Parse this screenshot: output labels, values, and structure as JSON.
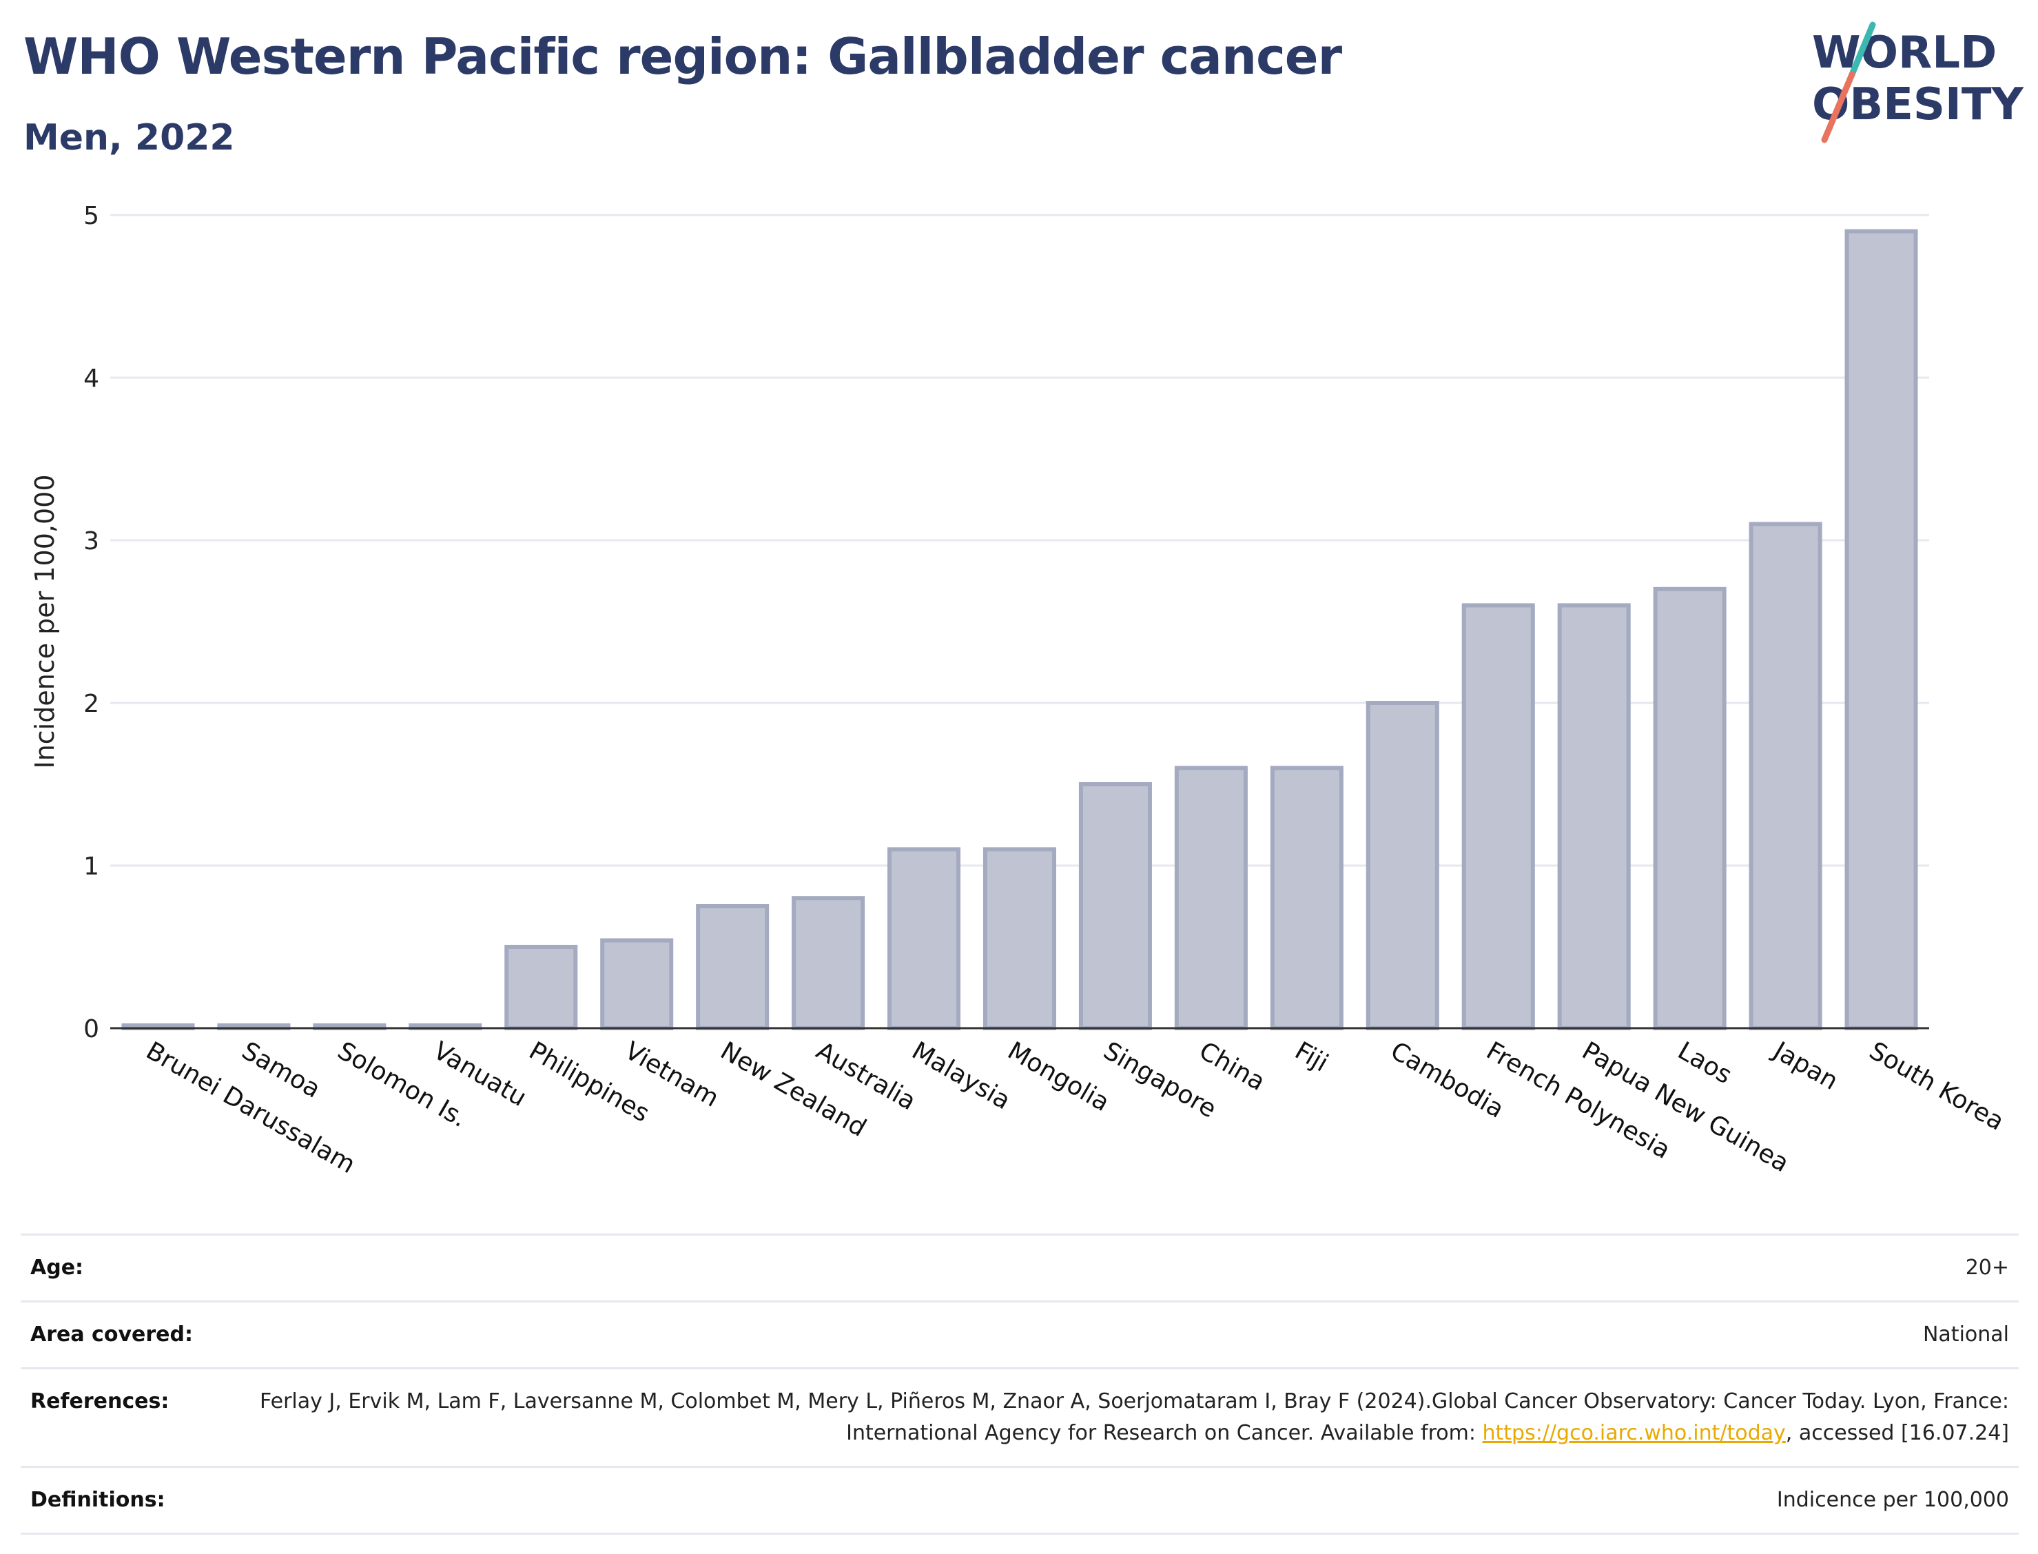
{
  "header": {
    "title": "WHO Western Pacific region: Gallbladder cancer",
    "subtitle": "Men, 2022"
  },
  "logo": {
    "line1": "WORLD",
    "line2": "OBESITY"
  },
  "colors": {
    "title": "#2b3a67",
    "bar_fill": "#c0c4d2",
    "bar_stroke": "#a4aac0",
    "grid": "#e6e8ef",
    "axis": "#333333",
    "logo_teal": "#3bb8b0",
    "logo_coral": "#e8735f",
    "link": "#e8a900"
  },
  "chart_data": {
    "type": "bar",
    "ylabel": "Incidence per 100,000",
    "xlabel": "",
    "ylim": [
      0,
      5
    ],
    "yticks": [
      0,
      1,
      2,
      3,
      4,
      5
    ],
    "grid": true,
    "categories": [
      "Brunei Darussalam",
      "Samoa",
      "Solomon Is.",
      "Vanuatu",
      "Philippines",
      "Vietnam",
      "New Zealand",
      "Australia",
      "Malaysia",
      "Mongolia",
      "Singapore",
      "China",
      "Fiji",
      "Cambodia",
      "French Polynesia",
      "Papua New Guinea",
      "Laos",
      "Japan",
      "South Korea"
    ],
    "values": [
      0,
      0,
      0,
      0,
      0.5,
      0.54,
      0.75,
      0.8,
      1.1,
      1.1,
      1.5,
      1.6,
      1.6,
      2.0,
      2.6,
      2.6,
      2.7,
      3.1,
      4.9
    ]
  },
  "info": {
    "age_label": "Age:",
    "age_value": "20+",
    "area_label": "Area covered:",
    "area_value": "National",
    "references_label": "References:",
    "references_text_1": "Ferlay J, Ervik M, Lam F, Laversanne M, Colombet M, Mery L, Piñeros M, Znaor A, Soerjomataram I, Bray F (2024).Global Cancer Observatory: Cancer Today. Lyon, France: International Agency for Research on Cancer. Available from: ",
    "references_link": "https://gco.iarc.who.int/today",
    "references_text_2": ", accessed [16.07.24]",
    "definitions_label": "Definitions:",
    "definitions_value": "Indicence per 100,000"
  }
}
